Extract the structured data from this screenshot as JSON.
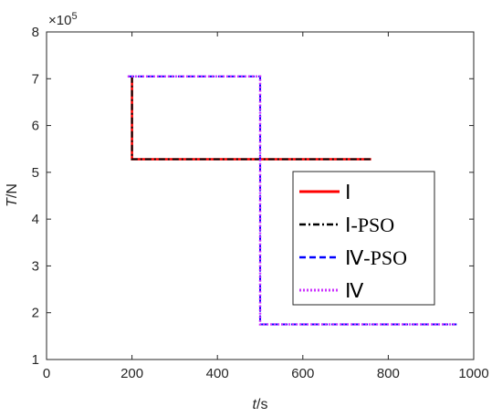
{
  "chart_data": {
    "type": "line",
    "xlabel_italic": "t",
    "xlabel_unit": "/s",
    "ylabel_italic": "T",
    "ylabel_unit": "/N",
    "y_multiplier": "×10",
    "y_multiplier_exp": "5",
    "xlim": [
      0,
      1000
    ],
    "ylim": [
      1,
      8
    ],
    "x_ticks": [
      0,
      200,
      400,
      600,
      800,
      1000
    ],
    "y_ticks": [
      1,
      2,
      3,
      4,
      5,
      6,
      7,
      8
    ],
    "grid": false,
    "legend_position": "lower-right",
    "series": [
      {
        "name": "Ⅰ",
        "color": "#ff0000",
        "style": "solid",
        "width": 2.5,
        "x": [
          200,
          200,
          200,
          760
        ],
        "y": [
          7.05,
          7.05,
          5.28,
          5.28
        ]
      },
      {
        "name": "Ⅰ-PSO",
        "color": "#000000",
        "style": "dashdot",
        "width": 2,
        "x": [
          200,
          200,
          200,
          760
        ],
        "y": [
          7.05,
          7.05,
          5.28,
          5.28
        ]
      },
      {
        "name": "Ⅳ-PSO",
        "color": "#0000ff",
        "style": "dashed",
        "width": 2,
        "x": [
          190,
          500,
          500,
          960
        ],
        "y": [
          7.05,
          7.05,
          1.75,
          1.75
        ]
      },
      {
        "name": "Ⅳ",
        "color": "#cc33ff",
        "style": "dotted",
        "width": 2.5,
        "x": [
          190,
          500,
          500,
          960
        ],
        "y": [
          7.05,
          7.05,
          1.75,
          1.75
        ]
      }
    ]
  }
}
